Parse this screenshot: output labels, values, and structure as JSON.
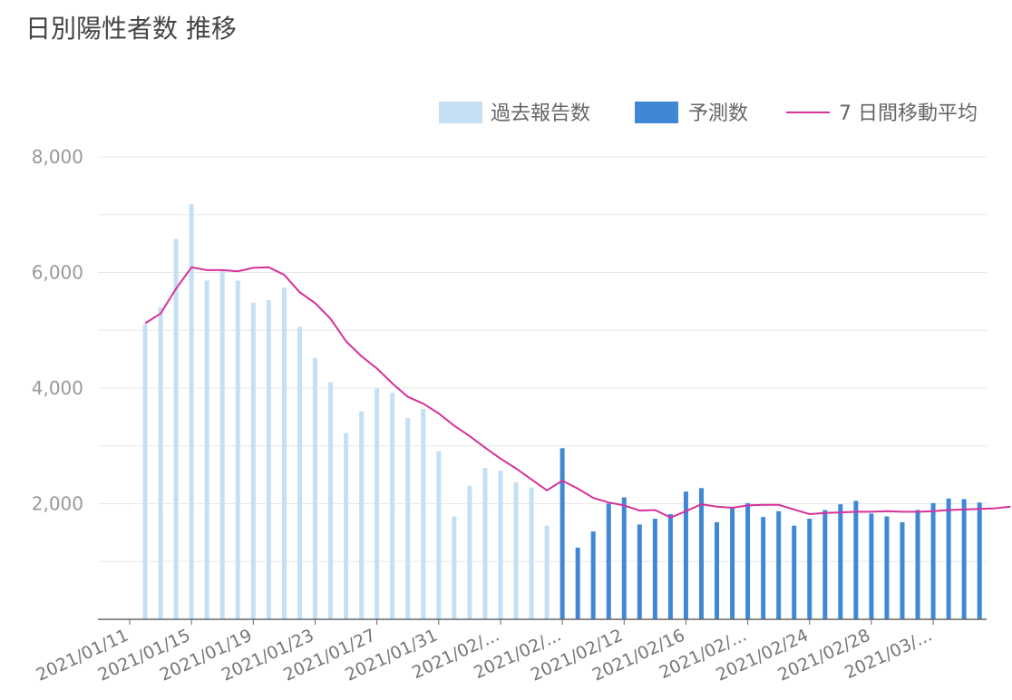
{
  "chart_data": {
    "type": "bar",
    "title": "日別陽性者数 推移",
    "colors": {
      "past": "#c5dff5",
      "forecast": "#4088d6",
      "average": "#d6329a",
      "grid": "#e8e8e8",
      "axis": "#666666"
    },
    "legend": {
      "placement": "top-right",
      "items": [
        {
          "key": "past",
          "label": "過去報告数",
          "kind": "box"
        },
        {
          "key": "forecast",
          "label": "予測数",
          "kind": "box"
        },
        {
          "key": "average",
          "label": "7 日間移動平均",
          "kind": "line"
        }
      ]
    },
    "ylim": [
      0,
      8000
    ],
    "yticks": [
      {
        "value": 2000,
        "label": "2,000"
      },
      {
        "value": 4000,
        "label": "4,000"
      },
      {
        "value": 6000,
        "label": "6,000"
      },
      {
        "value": 8000,
        "label": "8,000"
      }
    ],
    "grid": true,
    "x_start": "2021-01-11",
    "xticks": [
      {
        "index": 0,
        "label": "2021/01/11"
      },
      {
        "index": 4,
        "label": "2021/01/15"
      },
      {
        "index": 8,
        "label": "2021/01/19"
      },
      {
        "index": 12,
        "label": "2021/01/23"
      },
      {
        "index": 16,
        "label": "2021/01/27"
      },
      {
        "index": 20,
        "label": "2021/01/31"
      },
      {
        "index": 24,
        "label": "2021/02/..."
      },
      {
        "index": 28,
        "label": "2021/02/..."
      },
      {
        "index": 32,
        "label": "2021/02/12"
      },
      {
        "index": 36,
        "label": "2021/02/16"
      },
      {
        "index": 40,
        "label": "2021/02/..."
      },
      {
        "index": 44,
        "label": "2021/02/24"
      },
      {
        "index": 48,
        "label": "2021/02/28"
      },
      {
        "index": 52,
        "label": "2021/03/..."
      }
    ],
    "series": [
      {
        "name": "過去報告数",
        "start_index": 1,
        "values": [
          5100,
          5400,
          6580,
          7180,
          5860,
          6040,
          5860,
          5480,
          5520,
          5740,
          5060,
          4520,
          4100,
          3220,
          3600,
          3990,
          3920,
          3480,
          3640,
          2910,
          1780,
          2310,
          2620,
          2570,
          2370,
          2280,
          1620
        ]
      },
      {
        "name": "予測数",
        "start_index": 28,
        "values": [
          2960,
          1240,
          1520,
          2000,
          2110,
          1640,
          1740,
          1820,
          2210,
          2270,
          1680,
          1940,
          2010,
          1770,
          1870,
          1620,
          1740,
          1890,
          1990,
          2050,
          1830,
          1780,
          1680,
          1890,
          2010,
          2090,
          2080,
          2020
        ]
      },
      {
        "name": "7 日間移動平均",
        "start_index": 1,
        "values": [
          5120,
          5290,
          5720,
          6090,
          6040,
          6040,
          6020,
          6080,
          6090,
          5960,
          5660,
          5470,
          5200,
          4810,
          4550,
          4340,
          4080,
          3850,
          3730,
          3560,
          3350,
          3170,
          2970,
          2780,
          2610,
          2420,
          2230,
          2400,
          2260,
          2100,
          2020,
          1970,
          1880,
          1890,
          1760,
          1870,
          1990,
          1950,
          1930,
          1970,
          1980,
          1980,
          1900,
          1820,
          1840,
          1850,
          1860,
          1860,
          1870,
          1860,
          1860,
          1870,
          1890,
          1900,
          1910,
          1920,
          1950
        ]
      }
    ]
  }
}
